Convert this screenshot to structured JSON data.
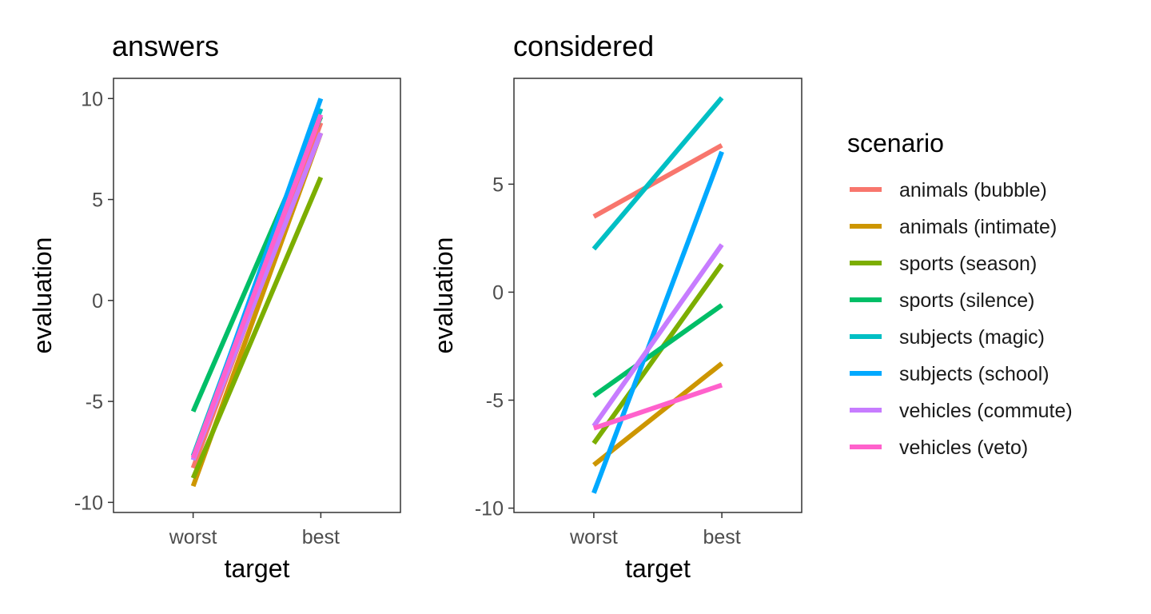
{
  "chart_data": {
    "type": "line",
    "x_label": "target",
    "y_label": "evaluation",
    "x_categories": [
      "worst",
      "best"
    ],
    "legend": {
      "title": "scenario",
      "placement": "right",
      "entries": [
        {
          "name": "animals (bubble)",
          "color": "#F8766D"
        },
        {
          "name": "animals (intimate)",
          "color": "#CD9600"
        },
        {
          "name": "sports (season)",
          "color": "#7CAE00"
        },
        {
          "name": "sports (silence)",
          "color": "#00BE67"
        },
        {
          "name": "subjects (magic)",
          "color": "#00BFC4"
        },
        {
          "name": "subjects (school)",
          "color": "#00A9FF"
        },
        {
          "name": "vehicles (commute)",
          "color": "#C77CFF"
        },
        {
          "name": "vehicles (veto)",
          "color": "#FF61CC"
        }
      ]
    },
    "panels": [
      {
        "title": "answers",
        "ylim": [
          -10.5,
          11
        ],
        "yticks": [
          -10,
          -5,
          0,
          5,
          10
        ],
        "ytick_labels": [
          "-10",
          "-5",
          "0",
          "5",
          "10"
        ],
        "grid": false,
        "series": [
          {
            "name": "animals (bubble)",
            "values": [
              -8.3,
              8.8
            ]
          },
          {
            "name": "animals (intimate)",
            "values": [
              -9.2,
              8.3
            ]
          },
          {
            "name": "sports (season)",
            "values": [
              -8.8,
              6.1
            ]
          },
          {
            "name": "sports (silence)",
            "values": [
              -5.5,
              9.1
            ]
          },
          {
            "name": "subjects (magic)",
            "values": [
              -7.7,
              9.5
            ]
          },
          {
            "name": "subjects (school)",
            "values": [
              -7.9,
              10.0
            ]
          },
          {
            "name": "vehicles (commute)",
            "values": [
              -7.9,
              8.3
            ]
          },
          {
            "name": "vehicles (veto)",
            "values": [
              -7.8,
              9.2
            ]
          }
        ]
      },
      {
        "title": "considered",
        "ylim": [
          -10.2,
          9.9
        ],
        "yticks": [
          -10,
          -5,
          0,
          5
        ],
        "ytick_labels": [
          "-10",
          "-5",
          "0",
          "5"
        ],
        "grid": false,
        "series": [
          {
            "name": "animals (bubble)",
            "values": [
              3.5,
              6.8
            ]
          },
          {
            "name": "animals (intimate)",
            "values": [
              -8.0,
              -3.3
            ]
          },
          {
            "name": "sports (season)",
            "values": [
              -7.0,
              1.3
            ]
          },
          {
            "name": "sports (silence)",
            "values": [
              -4.8,
              -0.6
            ]
          },
          {
            "name": "subjects (magic)",
            "values": [
              2.0,
              9.0
            ]
          },
          {
            "name": "subjects (school)",
            "values": [
              -9.3,
              6.5
            ]
          },
          {
            "name": "vehicles (commute)",
            "values": [
              -6.2,
              2.2
            ]
          },
          {
            "name": "vehicles (veto)",
            "values": [
              -6.3,
              -4.3
            ]
          }
        ]
      }
    ]
  }
}
